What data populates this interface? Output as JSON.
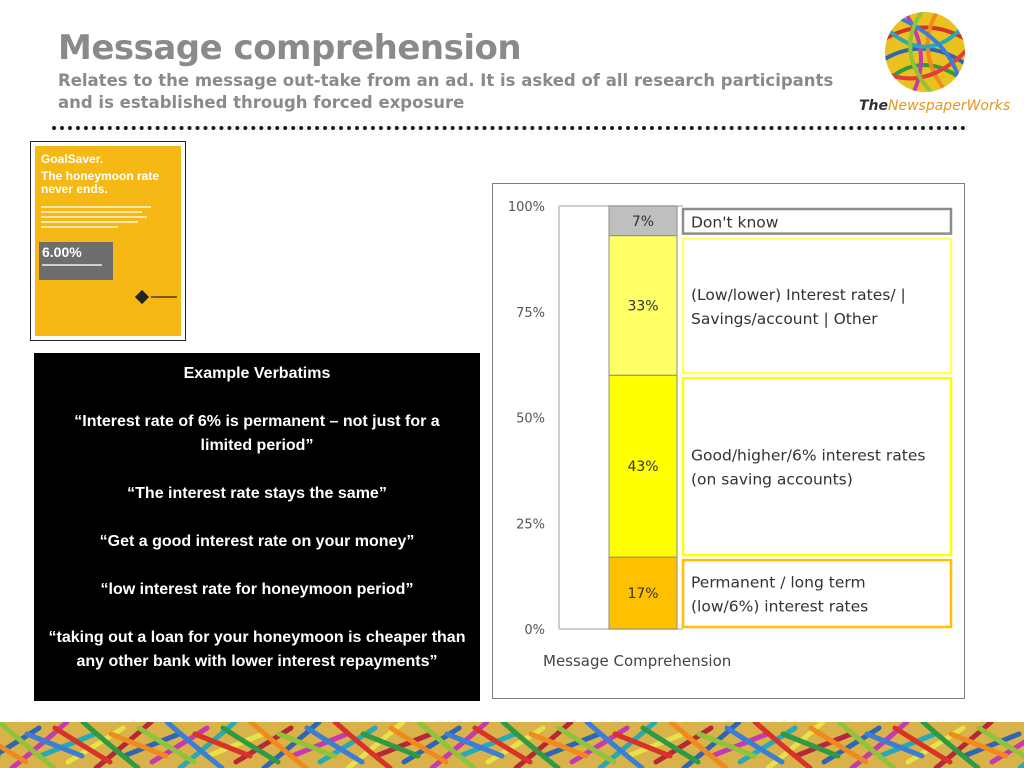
{
  "slide": {
    "title": "Message comprehension",
    "subtitle_lines": [
      "Relates to the message out-take from an ad.  It is asked of all research participants",
      "and is established through forced exposure"
    ]
  },
  "logo": {
    "text_prefix": "The",
    "text_brand": "NewspaperWorks"
  },
  "ad": {
    "brand": "GoalSaver.",
    "headline": "The honeymoon rate never ends.",
    "rate": "6.00%"
  },
  "verbatims": {
    "heading": "Example Verbatims",
    "quotes": [
      "“Interest rate of 6% is permanent – not just for a limited period”",
      "“The interest rate stays the same”",
      "“Get a good interest rate on your money”",
      "“low interest rate for honeymoon period”",
      "“taking out a loan for your honeymoon is cheaper than any other bank with lower interest repayments”"
    ]
  },
  "chart_data": {
    "type": "bar",
    "stacked": true,
    "categories": [
      "Message Comprehension"
    ],
    "ylim": [
      0,
      100
    ],
    "y_ticks": [
      "0%",
      "25%",
      "50%",
      "75%",
      "100%"
    ],
    "grid": false,
    "series": [
      {
        "name": "Permanent / long term (low/6%) interest rates",
        "values": [
          17
        ],
        "label": "17%",
        "color": "#ffc000",
        "name_lines": [
          "Permanent / long term",
          "(low/6%) interest rates"
        ]
      },
      {
        "name": "Good/higher/6% interest rates (on saving accounts)",
        "values": [
          43
        ],
        "label": "43%",
        "color": "#ffff00",
        "name_lines": [
          "Good/higher/6% interest rates",
          "(on saving accounts)"
        ]
      },
      {
        "name": "(Low/lower) Interest rates/ | Savings/account | Other",
        "values": [
          33
        ],
        "label": "33%",
        "color": "#ffff66",
        "name_lines": [
          "(Low/lower) Interest rates/ |",
          "Savings/account | Other"
        ]
      },
      {
        "name": "Don't know",
        "values": [
          7
        ],
        "label": "7%",
        "color": "#bfbfbf",
        "name_lines": [
          "Don't know"
        ]
      }
    ],
    "legend": "right, beside each segment"
  }
}
